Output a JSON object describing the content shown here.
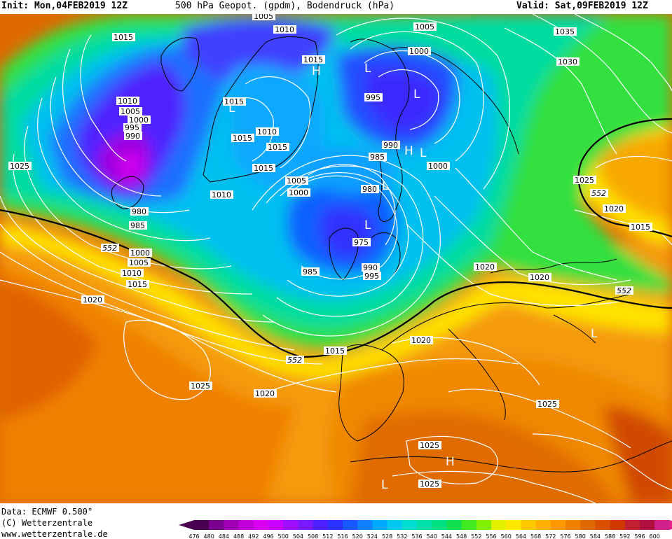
{
  "header": {
    "init": "Init: Mon,04FEB2019 12Z",
    "title": "500 hPa Geopot. (gpdm), Bodendruck (hPa)",
    "valid": "Valid: Sat,09FEB2019 12Z"
  },
  "footer": {
    "source": "Data: ECMWF  0.500°",
    "copyright": "(C) Wetterzentrale",
    "url": "www.wetterzentrale.de"
  },
  "scale": {
    "values": [
      "476",
      "480",
      "484",
      "488",
      "492",
      "496",
      "500",
      "504",
      "508",
      "512",
      "516",
      "520",
      "524",
      "528",
      "532",
      "536",
      "540",
      "544",
      "548",
      "552",
      "556",
      "560",
      "564",
      "568",
      "572",
      "576",
      "580",
      "584",
      "588",
      "592",
      "596",
      "600"
    ],
    "colors": [
      "#4a0050",
      "#7a0090",
      "#a000b4",
      "#c000d8",
      "#d800f0",
      "#c800ff",
      "#a010ff",
      "#7a18ff",
      "#4e20ff",
      "#2a30ff",
      "#1858ff",
      "#1080ff",
      "#00a8ff",
      "#00c8f0",
      "#00dcd0",
      "#00e0a8",
      "#00e080",
      "#10e050",
      "#40ea20",
      "#80f000",
      "#e0f000",
      "#ffe800",
      "#ffc800",
      "#ffb000",
      "#ff9800",
      "#f08000",
      "#e06800",
      "#d85000",
      "#d03800",
      "#c02030",
      "#b01040",
      "#d0208a"
    ],
    "arrow_left_color": "#4a0050",
    "arrow_right_color": "#e8208a"
  },
  "map": {
    "isobar_labels": [
      "1015",
      "1005",
      "1010",
      "1005",
      "1035",
      "1015",
      "1000",
      "1030",
      "1015",
      "1010",
      "1005",
      "1000",
      "995",
      "990",
      "1015",
      "1010",
      "1015",
      "1015",
      "995",
      "990",
      "985",
      "1000",
      "1025",
      "1010",
      "1005",
      "1000",
      "980",
      "975",
      "1025",
      "1020",
      "980",
      "985",
      "985",
      "990",
      "995",
      "1015",
      "1000",
      "1005",
      "1010",
      "1015",
      "1020",
      "1020",
      "1015",
      "1020",
      "1025",
      "1020",
      "1025",
      "1025",
      "1025",
      "1020"
    ],
    "highs": [
      "H",
      "H",
      "H"
    ],
    "lows": [
      "L",
      "L",
      "L",
      "L",
      "L",
      "L",
      "L",
      "L"
    ],
    "contour_labels": [
      "552",
      "552",
      "552",
      "552"
    ]
  }
}
